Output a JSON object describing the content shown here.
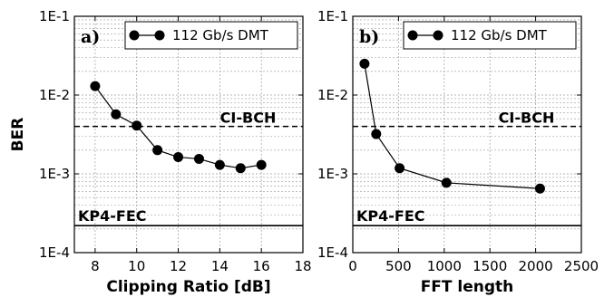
{
  "chart_data": [
    {
      "type": "line",
      "panel_label": "a)",
      "xlabel": "Clipping Ratio [dB]",
      "ylabel": "BER",
      "xlim": [
        7,
        18
      ],
      "ylim": [
        0.0001,
        0.1
      ],
      "yscale": "log",
      "xticks": [
        8,
        10,
        12,
        14,
        16,
        18
      ],
      "xtick_labels": [
        "8",
        "10",
        "12",
        "14",
        "16",
        "18"
      ],
      "yticks": [
        0.0001,
        0.001,
        0.01,
        0.1
      ],
      "ytick_labels": [
        "1E-4",
        "1E-3",
        "1E-2",
        "1E-1"
      ],
      "grid": true,
      "legend_position": "top-right",
      "series": [
        {
          "name": "112 Gb/s DMT",
          "x": [
            8,
            9,
            10,
            11,
            12,
            13,
            14,
            15,
            16
          ],
          "y": [
            0.013,
            0.0057,
            0.0041,
            0.002,
            0.00163,
            0.00155,
            0.0013,
            0.00118,
            0.0013
          ]
        }
      ],
      "reference_lines": [
        {
          "label": "CI-BCH",
          "y": 0.004,
          "style": "dashed"
        },
        {
          "label": "KP4-FEC",
          "y": 0.00022,
          "style": "solid"
        }
      ]
    },
    {
      "type": "line",
      "panel_label": "b)",
      "xlabel": "FFT length",
      "ylabel": "",
      "xlim": [
        0,
        2500
      ],
      "ylim": [
        0.0001,
        0.1
      ],
      "yscale": "log",
      "xticks": [
        0,
        500,
        1000,
        1500,
        2000,
        2500
      ],
      "xtick_labels": [
        "0",
        "500",
        "1000",
        "1500",
        "2000",
        "2500"
      ],
      "yticks": [
        0.0001,
        0.001,
        0.01,
        0.1
      ],
      "ytick_labels": [
        "1E-4",
        "1E-3",
        "1E-2",
        "1E-1"
      ],
      "grid": true,
      "legend_position": "top-right",
      "series": [
        {
          "name": "112 Gb/s DMT",
          "x": [
            128,
            256,
            512,
            1024,
            2048
          ],
          "y": [
            0.025,
            0.0032,
            0.00118,
            0.00077,
            0.00065
          ]
        }
      ],
      "reference_lines": [
        {
          "label": "CI-BCH",
          "y": 0.004,
          "style": "dashed"
        },
        {
          "label": "KP4-FEC",
          "y": 0.00022,
          "style": "solid"
        }
      ]
    }
  ]
}
